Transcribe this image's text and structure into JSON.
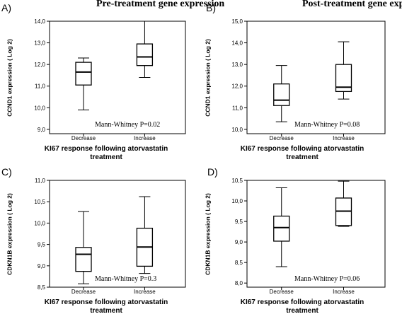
{
  "chart_data": [
    {
      "type": "box",
      "panel_label": "A)",
      "title": "Pre-treatment gene expression",
      "ylabel": "CCND1 expression ( Log 2)",
      "xlabel": [
        "KI67 response following atorvastatin",
        "treatment"
      ],
      "categories": [
        "Decrease",
        "Increase"
      ],
      "ylim": [
        8.8,
        14.0
      ],
      "yticks": [
        "9,0",
        "10,0",
        "11,0",
        "12,0",
        "13,0",
        "14,0"
      ],
      "ytick_values": [
        9,
        10,
        11,
        12,
        13,
        14
      ],
      "annotation": "Mann-Whitney P=0.02",
      "boxes": [
        {
          "whisker_low": 9.9,
          "q1": 11.05,
          "median": 11.65,
          "q3": 12.1,
          "whisker_high": 12.3
        },
        {
          "whisker_low": 11.4,
          "q1": 11.95,
          "median": 12.35,
          "q3": 12.95,
          "whisker_high": 14.0
        }
      ]
    },
    {
      "type": "box",
      "panel_label": "B)",
      "title": "Post-treatment gene expression",
      "ylabel": "CCND1 expression ( Log 2)",
      "xlabel": [
        "KI67 response following atorvastatin",
        "treatment"
      ],
      "categories": [
        "Decrease",
        "Increase"
      ],
      "ylim": [
        9.8,
        15.0
      ],
      "yticks": [
        "10,0",
        "11,0",
        "12,0",
        "13,0",
        "14,0",
        "15,0"
      ],
      "ytick_values": [
        10,
        11,
        12,
        13,
        14,
        15
      ],
      "annotation": "Mann-Whitney P=0.08",
      "boxes": [
        {
          "whisker_low": 10.35,
          "q1": 11.1,
          "median": 11.35,
          "q3": 12.1,
          "whisker_high": 12.95
        },
        {
          "whisker_low": 11.4,
          "q1": 11.75,
          "median": 11.95,
          "q3": 13.0,
          "whisker_high": 14.05
        }
      ]
    },
    {
      "type": "box",
      "panel_label": "C)",
      "title": "",
      "ylabel": "CDKN1B expression ( Log 2)",
      "xlabel": [
        "KI67 response following atorvastatin",
        "treatment"
      ],
      "categories": [
        "Decrease",
        "Increase"
      ],
      "ylim": [
        8.5,
        11.0
      ],
      "yticks": [
        "8,5",
        "9,0",
        "9,5",
        "10,0",
        "10,5",
        "11,0"
      ],
      "ytick_values": [
        8.5,
        9.0,
        9.5,
        10.0,
        10.5,
        11.0
      ],
      "annotation": "Mann-Whitney P=0.3",
      "boxes": [
        {
          "whisker_low": 8.58,
          "q1": 8.87,
          "median": 9.27,
          "q3": 9.43,
          "whisker_high": 10.27
        },
        {
          "whisker_low": 8.82,
          "q1": 8.99,
          "median": 9.44,
          "q3": 9.88,
          "whisker_high": 10.62
        }
      ]
    },
    {
      "type": "box",
      "panel_label": "D)",
      "title": "",
      "ylabel": "CDKN1B expression ( Log 2)",
      "xlabel": [
        "KI67 response following atorvastatin",
        "treatment"
      ],
      "categories": [
        "Decrease",
        "Increase"
      ],
      "ylim": [
        7.9,
        10.5
      ],
      "yticks": [
        "8,0",
        "8,5",
        "9,0",
        "9,5",
        "10,0",
        "10,5"
      ],
      "ytick_values": [
        8.0,
        8.5,
        9.0,
        9.5,
        10.0,
        10.5
      ],
      "annotation": "Mann-Whitney P=0.06",
      "boxes": [
        {
          "whisker_low": 8.4,
          "q1": 9.02,
          "median": 9.35,
          "q3": 9.63,
          "whisker_high": 10.32
        },
        {
          "whisker_low": 9.38,
          "q1": 9.4,
          "median": 9.75,
          "q3": 10.07,
          "whisker_high": 10.48
        }
      ]
    }
  ]
}
